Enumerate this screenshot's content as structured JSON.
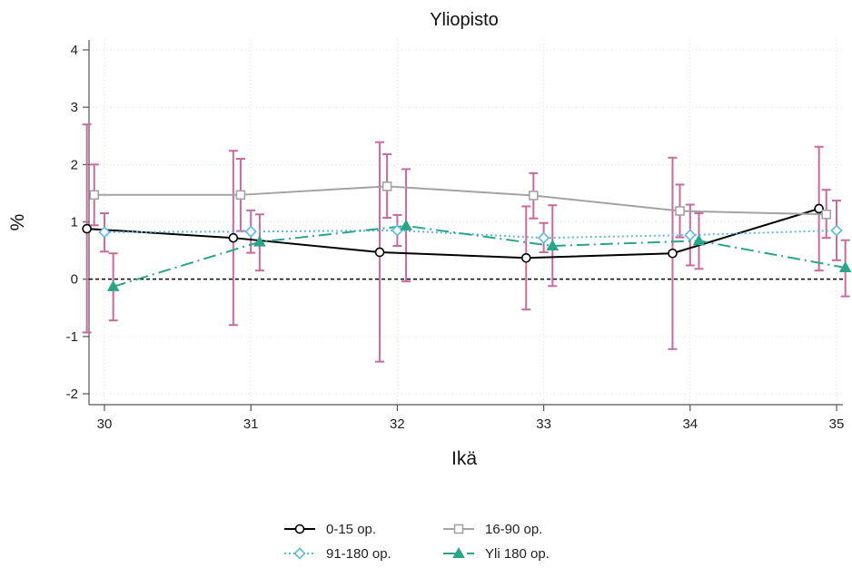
{
  "chart_data": {
    "type": "line",
    "title": "Yliopisto",
    "xlabel": "Ikä",
    "ylabel": "%",
    "xlim": [
      29.9,
      35.05
    ],
    "ylim": [
      -2.2,
      4.2
    ],
    "x_ticks": [
      30,
      31,
      32,
      33,
      34,
      35
    ],
    "y_ticks": [
      -2,
      -1,
      0,
      1,
      2,
      3,
      4
    ],
    "grid": true,
    "zero_line": true,
    "legend_position": "bottom",
    "error_bar_color": "#c86a9e",
    "series": [
      {
        "name": "0-15 op.",
        "color": "#000000",
        "marker": "circle-open",
        "line_style": "solid",
        "points": [
          {
            "x": 29.88,
            "y": 0.88,
            "lo": -0.93,
            "hi": 2.7
          },
          {
            "x": 30.88,
            "y": 0.72,
            "lo": -0.8,
            "hi": 2.24
          },
          {
            "x": 31.88,
            "y": 0.47,
            "lo": -1.44,
            "hi": 2.39
          },
          {
            "x": 32.88,
            "y": 0.37,
            "lo": -0.53,
            "hi": 1.27
          },
          {
            "x": 33.88,
            "y": 0.45,
            "lo": -1.22,
            "hi": 2.12
          },
          {
            "x": 34.88,
            "y": 1.23,
            "lo": 0.15,
            "hi": 2.31
          }
        ]
      },
      {
        "name": "16-90 op.",
        "color": "#a3a3a3",
        "marker": "square-open",
        "line_style": "solid",
        "points": [
          {
            "x": 29.93,
            "y": 1.47,
            "lo": 0.94,
            "hi": 2.0
          },
          {
            "x": 30.93,
            "y": 1.47,
            "lo": 0.84,
            "hi": 2.1
          },
          {
            "x": 31.93,
            "y": 1.62,
            "lo": 1.07,
            "hi": 2.18
          },
          {
            "x": 32.93,
            "y": 1.46,
            "lo": 1.06,
            "hi": 1.85
          },
          {
            "x": 33.93,
            "y": 1.19,
            "lo": 0.73,
            "hi": 1.65
          },
          {
            "x": 34.93,
            "y": 1.13,
            "lo": 0.72,
            "hi": 1.56
          }
        ]
      },
      {
        "name": "91-180 op.",
        "color": "#5db8e8",
        "marker": "diamond-open",
        "line_style": "dotted",
        "points": [
          {
            "x": 30.0,
            "y": 0.82,
            "lo": 0.48,
            "hi": 1.15
          },
          {
            "x": 31.0,
            "y": 0.83,
            "lo": 0.46,
            "hi": 1.2
          },
          {
            "x": 32.0,
            "y": 0.85,
            "lo": 0.58,
            "hi": 1.12
          },
          {
            "x": 33.0,
            "y": 0.72,
            "lo": 0.47,
            "hi": 0.98
          },
          {
            "x": 34.0,
            "y": 0.77,
            "lo": 0.24,
            "hi": 1.3
          },
          {
            "x": 35.0,
            "y": 0.85,
            "lo": 0.33,
            "hi": 1.37
          }
        ]
      },
      {
        "name": "Yli 180 op.",
        "color": "#2aa58a",
        "marker": "triangle-filled",
        "line_style": "longdash-dot",
        "points": [
          {
            "x": 30.06,
            "y": -0.13,
            "lo": -0.72,
            "hi": 0.45
          },
          {
            "x": 31.06,
            "y": 0.65,
            "lo": 0.15,
            "hi": 1.13
          },
          {
            "x": 32.06,
            "y": 0.93,
            "lo": -0.04,
            "hi": 1.92
          },
          {
            "x": 33.06,
            "y": 0.58,
            "lo": -0.12,
            "hi": 1.29
          },
          {
            "x": 34.06,
            "y": 0.67,
            "lo": 0.18,
            "hi": 1.15
          },
          {
            "x": 35.06,
            "y": 0.2,
            "lo": -0.3,
            "hi": 0.68
          }
        ]
      }
    ],
    "legend_order": [
      0,
      1,
      2,
      3
    ]
  }
}
